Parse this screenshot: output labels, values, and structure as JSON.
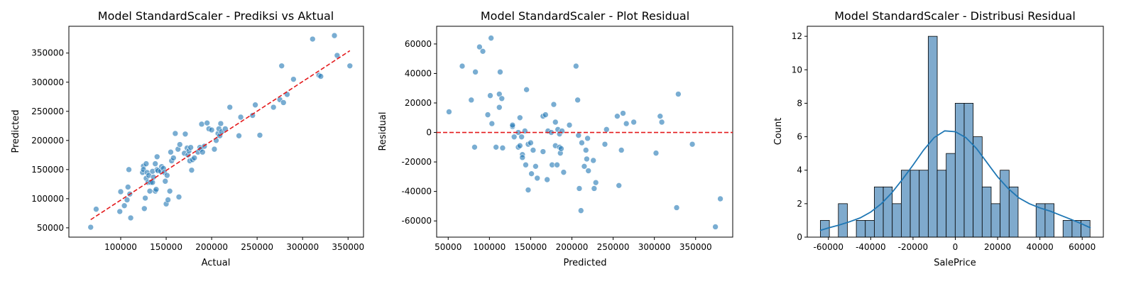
{
  "chart_data": [
    {
      "type": "scatter",
      "title": "Model StandardScaler - Prediksi vs Aktual",
      "xlabel": "Actual",
      "ylabel": "Predicted",
      "xlim": [
        43000,
        367000
      ],
      "ylim": [
        34000,
        396000
      ],
      "xticks": [
        100000,
        150000,
        200000,
        250000,
        300000,
        350000
      ],
      "yticks": [
        50000,
        100000,
        150000,
        200000,
        250000,
        300000,
        350000
      ],
      "point_color": "#1f77b4",
      "points": [
        [
          67000,
          51000
        ],
        [
          73000,
          82000
        ],
        [
          99000,
          78000
        ],
        [
          100000,
          112000
        ],
        [
          104000,
          88000
        ],
        [
          107000,
          98000
        ],
        [
          108000,
          120000
        ],
        [
          109000,
          150000
        ],
        [
          110000,
          108000
        ],
        [
          111000,
          67000
        ],
        [
          124000,
          145000
        ],
        [
          125000,
          156000
        ],
        [
          125000,
          150000
        ],
        [
          126000,
          83000
        ],
        [
          127000,
          101000
        ],
        [
          128000,
          160000
        ],
        [
          128000,
          135000
        ],
        [
          129000,
          145000
        ],
        [
          130000,
          128000
        ],
        [
          131000,
          140000
        ],
        [
          132000,
          113000
        ],
        [
          133000,
          128000
        ],
        [
          135000,
          128000
        ],
        [
          135000,
          147000
        ],
        [
          136000,
          137000
        ],
        [
          138000,
          160000
        ],
        [
          138000,
          113000
        ],
        [
          139000,
          116000
        ],
        [
          140000,
          172000
        ],
        [
          140000,
          150000
        ],
        [
          141000,
          148000
        ],
        [
          144000,
          147000
        ],
        [
          145000,
          155000
        ],
        [
          147000,
          152000
        ],
        [
          148000,
          145000
        ],
        [
          149000,
          130000
        ],
        [
          150000,
          91000
        ],
        [
          151000,
          140000
        ],
        [
          152000,
          98000
        ],
        [
          154000,
          113000
        ],
        [
          155000,
          180000
        ],
        [
          156000,
          165000
        ],
        [
          158000,
          170000
        ],
        [
          160000,
          212000
        ],
        [
          163000,
          185000
        ],
        [
          164000,
          103000
        ],
        [
          165000,
          193000
        ],
        [
          170000,
          178000
        ],
        [
          171000,
          211000
        ],
        [
          173000,
          187000
        ],
        [
          174000,
          175000
        ],
        [
          175000,
          182000
        ],
        [
          176000,
          165000
        ],
        [
          177000,
          188000
        ],
        [
          178000,
          149000
        ],
        [
          179000,
          167000
        ],
        [
          181000,
          170000
        ],
        [
          185000,
          180000
        ],
        [
          187000,
          188000
        ],
        [
          188000,
          185000
        ],
        [
          189000,
          228000
        ],
        [
          190000,
          180000
        ],
        [
          192000,
          190000
        ],
        [
          195000,
          230000
        ],
        [
          197000,
          220000
        ],
        [
          200000,
          218000
        ],
        [
          203000,
          185000
        ],
        [
          205000,
          200000
        ],
        [
          207000,
          212000
        ],
        [
          208000,
          220000
        ],
        [
          209000,
          208000
        ],
        [
          210000,
          229000
        ],
        [
          211000,
          215000
        ],
        [
          215000,
          220000
        ],
        [
          220000,
          257000
        ],
        [
          230000,
          208000
        ],
        [
          232000,
          240000
        ],
        [
          245000,
          243000
        ],
        [
          248000,
          261000
        ],
        [
          253000,
          209000
        ],
        [
          268000,
          257000
        ],
        [
          275000,
          270000
        ],
        [
          277000,
          328000
        ],
        [
          279000,
          265000
        ],
        [
          283000,
          279000
        ],
        [
          290000,
          305000
        ],
        [
          311000,
          374000
        ],
        [
          318000,
          312000
        ],
        [
          320000,
          310000
        ],
        [
          335000,
          380000
        ],
        [
          338000,
          346000
        ],
        [
          352000,
          328000
        ]
      ],
      "reference_line": {
        "style": "dashed",
        "color": "#e41a1c",
        "from": [
          67000,
          64000
        ],
        "to": [
          352000,
          354000
        ]
      }
    },
    {
      "type": "scatter",
      "title": "Model StandardScaler - Plot Residual",
      "xlabel": "Predicted",
      "ylabel": "Residual",
      "xlim": [
        36000,
        395000
      ],
      "ylim": [
        -71000,
        72000
      ],
      "xticks": [
        50000,
        100000,
        150000,
        200000,
        250000,
        300000,
        350000
      ],
      "yticks": [
        -60000,
        -40000,
        -20000,
        0,
        20000,
        40000,
        60000
      ],
      "point_color": "#1f77b4",
      "points": [
        [
          51000,
          14000
        ],
        [
          67000,
          45000
        ],
        [
          78000,
          22000
        ],
        [
          82000,
          -10000
        ],
        [
          83000,
          41000
        ],
        [
          88000,
          58000
        ],
        [
          92000,
          55000
        ],
        [
          98000,
          12000
        ],
        [
          101000,
          25000
        ],
        [
          102000,
          64000
        ],
        [
          103000,
          6000
        ],
        [
          108000,
          -10000
        ],
        [
          112000,
          26000
        ],
        [
          112000,
          17000
        ],
        [
          113000,
          41000
        ],
        [
          115000,
          23000
        ],
        [
          116000,
          -10500
        ],
        [
          128000,
          4000
        ],
        [
          128000,
          5000
        ],
        [
          130000,
          -3000
        ],
        [
          135000,
          -10000
        ],
        [
          135000,
          0
        ],
        [
          137000,
          -9000
        ],
        [
          137000,
          10000
        ],
        [
          139000,
          -3000
        ],
        [
          140000,
          -15000
        ],
        [
          140000,
          -17000
        ],
        [
          143000,
          1000
        ],
        [
          144000,
          -22000
        ],
        [
          145000,
          29000
        ],
        [
          147000,
          -8000
        ],
        [
          147000,
          -39000
        ],
        [
          150000,
          -7000
        ],
        [
          151000,
          -28000
        ],
        [
          153000,
          -12000
        ],
        [
          156000,
          -23000
        ],
        [
          158000,
          -31000
        ],
        [
          165000,
          11000
        ],
        [
          165000,
          -13000
        ],
        [
          168000,
          12000
        ],
        [
          170000,
          -32000
        ],
        [
          171000,
          1000
        ],
        [
          175000,
          0
        ],
        [
          176000,
          -22000
        ],
        [
          178000,
          19000
        ],
        [
          180000,
          -9000
        ],
        [
          180000,
          7000
        ],
        [
          182000,
          -22000
        ],
        [
          183000,
          2000
        ],
        [
          185000,
          -1000
        ],
        [
          185000,
          -10000
        ],
        [
          186000,
          -14000
        ],
        [
          187000,
          -11000
        ],
        [
          188000,
          1000
        ],
        [
          190000,
          -27000
        ],
        [
          197000,
          5000
        ],
        [
          205000,
          45000
        ],
        [
          207000,
          22000
        ],
        [
          208000,
          -2000
        ],
        [
          209000,
          -38000
        ],
        [
          211000,
          -53000
        ],
        [
          212000,
          -7000
        ],
        [
          215000,
          -23000
        ],
        [
          217000,
          -12000
        ],
        [
          218000,
          -18000
        ],
        [
          219000,
          -4000
        ],
        [
          220000,
          -26000
        ],
        [
          226000,
          -19000
        ],
        [
          227000,
          -38000
        ],
        [
          229000,
          -34000
        ],
        [
          240000,
          -8000
        ],
        [
          242000,
          2000
        ],
        [
          255000,
          11000
        ],
        [
          257000,
          -36000
        ],
        [
          260000,
          -12000
        ],
        [
          262000,
          13000
        ],
        [
          266000,
          6000
        ],
        [
          275000,
          7000
        ],
        [
          302000,
          -14000
        ],
        [
          307000,
          11000
        ],
        [
          309000,
          7000
        ],
        [
          327000,
          -51000
        ],
        [
          329000,
          26000
        ],
        [
          346000,
          -8000
        ],
        [
          374000,
          -64000
        ],
        [
          380000,
          -45000
        ]
      ],
      "reference_line": {
        "style": "dashed",
        "color": "#e41a1c",
        "y": 0
      }
    },
    {
      "type": "bar",
      "title": "Model StandardScaler - Distribusi Residual",
      "xlabel": "SalePrice",
      "ylabel": "Count",
      "xlim": [
        -70000,
        70000
      ],
      "ylim": [
        0,
        12.6
      ],
      "xticks": [
        -60000,
        -40000,
        -20000,
        0,
        20000,
        40000,
        60000
      ],
      "yticks": [
        0,
        2,
        4,
        6,
        8,
        10,
        12
      ],
      "bar_color": "#7faacd",
      "bin_start": -63800,
      "bin_width": 4250,
      "counts": [
        1,
        0,
        2,
        0,
        1,
        1,
        3,
        3,
        2,
        4,
        4,
        4,
        12,
        4,
        5,
        8,
        8,
        6,
        3,
        2,
        4,
        3,
        0,
        0,
        2,
        2,
        0,
        1,
        1,
        1
      ],
      "kde_color": "#1f77b4",
      "kde": [
        [
          -64000,
          0.4
        ],
        [
          -60000,
          0.55
        ],
        [
          -55000,
          0.72
        ],
        [
          -50000,
          0.92
        ],
        [
          -45000,
          1.15
        ],
        [
          -40000,
          1.5
        ],
        [
          -35000,
          2.0
        ],
        [
          -30000,
          2.65
        ],
        [
          -25000,
          3.45
        ],
        [
          -20000,
          4.3
        ],
        [
          -15000,
          5.2
        ],
        [
          -10000,
          5.95
        ],
        [
          -5000,
          6.35
        ],
        [
          0,
          6.3
        ],
        [
          5000,
          5.95
        ],
        [
          10000,
          5.3
        ],
        [
          15000,
          4.45
        ],
        [
          20000,
          3.6
        ],
        [
          25000,
          2.9
        ],
        [
          30000,
          2.35
        ],
        [
          35000,
          2.0
        ],
        [
          40000,
          1.75
        ],
        [
          45000,
          1.55
        ],
        [
          50000,
          1.3
        ],
        [
          55000,
          1.05
        ],
        [
          60000,
          0.78
        ],
        [
          64000,
          0.55
        ]
      ]
    }
  ]
}
